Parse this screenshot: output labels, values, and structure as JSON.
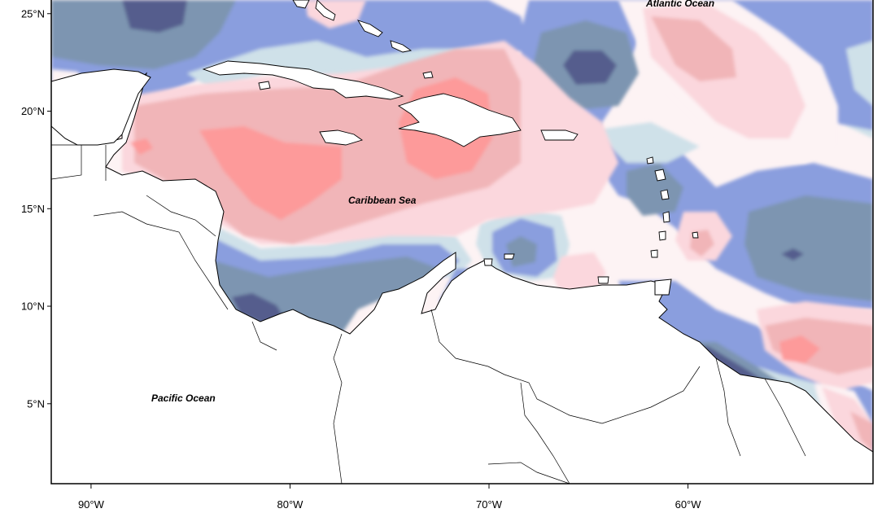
{
  "map": {
    "ocean_labels": {
      "atlantic": "Atlantic Ocean",
      "caribbean": "Caribbean Sea",
      "pacific": "Pacific Ocean"
    },
    "lat_ticks": [
      {
        "value": 25,
        "label": "25°N"
      },
      {
        "value": 20,
        "label": "20°N"
      },
      {
        "value": 15,
        "label": "15°N"
      },
      {
        "value": 10,
        "label": "10°N"
      },
      {
        "value": 5,
        "label": "5°N"
      }
    ],
    "lon_ticks": [
      {
        "value": -90,
        "label": "90°W"
      },
      {
        "value": -80,
        "label": "80°W"
      },
      {
        "value": -70,
        "label": "70°W"
      },
      {
        "value": -60,
        "label": "60°W"
      }
    ],
    "extent": {
      "lon_min": -92,
      "lon_max": -50.7,
      "lat_min": 0.9,
      "lat_max": 25.7
    },
    "palette": {
      "dark_navy": "#545d8d",
      "slate": "#7d95b1",
      "periwinkle": "#8a9ede",
      "pale_blue": "#cfe1e9",
      "near_white": "#fdf3f4",
      "pale_pink": "#fbd7dd",
      "pink": "#f1b5b8",
      "salmon": "#fd9a9a",
      "land": "#ffffff"
    }
  }
}
